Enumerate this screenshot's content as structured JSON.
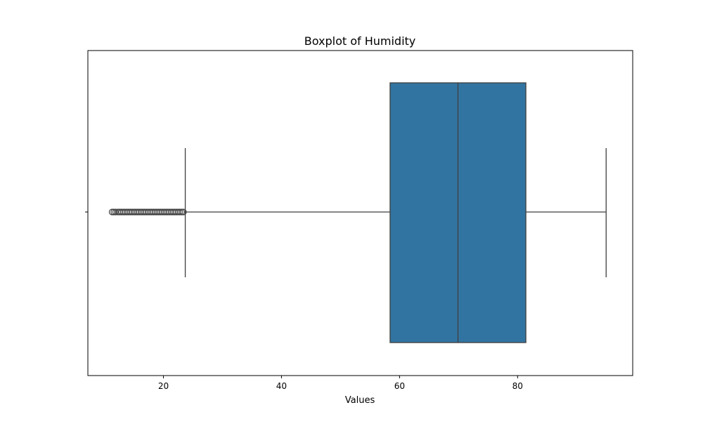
{
  "chart_data": {
    "type": "box",
    "title": "Boxplot of Humidity",
    "xlabel": "Values",
    "ylabel": "",
    "xlim": [
      7.2,
      99.5
    ],
    "xticks": [
      20,
      40,
      60,
      80
    ],
    "grid": false,
    "box": {
      "q1": 58.4,
      "median": 69.9,
      "q3": 81.4,
      "whisker_low": 23.7,
      "whisker_high": 95.0,
      "color": "#3274a1",
      "edge_color": "#3f3f3f"
    },
    "outliers": [
      11.3,
      11.6,
      11.9,
      12.3,
      12.6,
      12.9,
      13.2,
      13.5,
      13.8,
      14.1,
      14.4,
      14.7,
      15.0,
      15.3,
      15.6,
      15.9,
      16.2,
      16.5,
      16.8,
      17.1,
      17.4,
      17.7,
      18.0,
      18.3,
      18.6,
      18.9,
      19.2,
      19.5,
      19.8,
      20.1,
      20.4,
      20.7,
      21.0,
      21.3,
      21.6,
      21.9,
      22.2,
      22.5,
      22.8,
      23.1,
      23.4
    ]
  }
}
